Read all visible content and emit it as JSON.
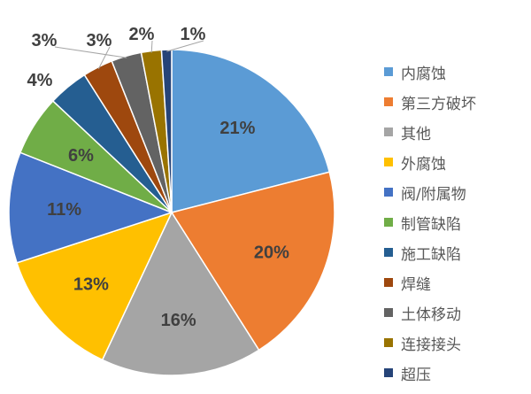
{
  "chart_data": {
    "type": "pie",
    "start": "12 o'clock, clockwise",
    "legend_position": "right",
    "categories": [
      "内腐蚀",
      "第三方破坏",
      "其他",
      "外腐蚀",
      "阀/附属物",
      "制管缺陷",
      "施工缺陷",
      "焊缝",
      "土体移动",
      "连接接头",
      "超压"
    ],
    "values": [
      21,
      20,
      16,
      13,
      11,
      6,
      4,
      3,
      3,
      2,
      1
    ],
    "labels": [
      "21%",
      "20%",
      "16%",
      "13%",
      "11%",
      "6%",
      "4%",
      "3%",
      "3%",
      "2%",
      "1%"
    ],
    "colors": [
      "#5B9BD5",
      "#ED7D31",
      "#A5A5A5",
      "#FFC000",
      "#4472C4",
      "#70AD47",
      "#255E91",
      "#9E480E",
      "#636363",
      "#997300",
      "#264478"
    ]
  }
}
